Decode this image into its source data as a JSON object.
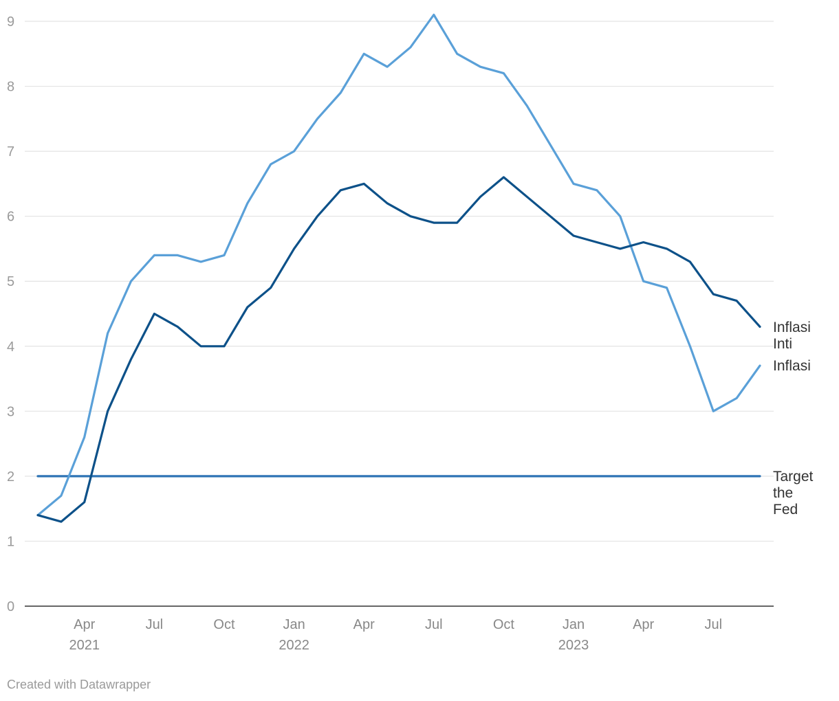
{
  "chart_data": {
    "type": "line",
    "x": [
      "2021-02",
      "2021-03",
      "2021-04",
      "2021-05",
      "2021-06",
      "2021-07",
      "2021-08",
      "2021-09",
      "2021-10",
      "2021-11",
      "2021-12",
      "2022-01",
      "2022-02",
      "2022-03",
      "2022-04",
      "2022-05",
      "2022-06",
      "2022-07",
      "2022-08",
      "2022-09",
      "2022-10",
      "2022-11",
      "2022-12",
      "2023-01",
      "2023-02",
      "2023-03",
      "2023-04",
      "2023-05",
      "2023-06",
      "2023-07",
      "2023-08",
      "2023-09"
    ],
    "series": [
      {
        "name": "Inflasi",
        "color": "#5aa0d8",
        "values": [
          1.4,
          1.7,
          2.6,
          4.2,
          5.0,
          5.4,
          5.4,
          5.3,
          5.4,
          6.2,
          6.8,
          7.0,
          7.5,
          7.9,
          8.5,
          8.3,
          8.6,
          9.1,
          8.5,
          8.3,
          8.2,
          7.7,
          7.1,
          6.5,
          6.4,
          6.0,
          5.0,
          4.9,
          4.0,
          3.0,
          3.2,
          3.7
        ]
      },
      {
        "name": "Inflasi Inti",
        "color": "#0d5189",
        "values": [
          1.4,
          1.3,
          1.6,
          3.0,
          3.8,
          4.5,
          4.3,
          4.0,
          4.0,
          4.6,
          4.9,
          5.5,
          6.0,
          6.4,
          6.5,
          6.2,
          6.0,
          5.9,
          5.9,
          6.3,
          6.6,
          6.3,
          6.0,
          5.7,
          5.6,
          5.5,
          5.6,
          5.5,
          5.3,
          4.8,
          4.7,
          4.3
        ]
      },
      {
        "name": "Target the Fed",
        "color": "#2e74b5",
        "values": [
          2,
          2,
          2,
          2,
          2,
          2,
          2,
          2,
          2,
          2,
          2,
          2,
          2,
          2,
          2,
          2,
          2,
          2,
          2,
          2,
          2,
          2,
          2,
          2,
          2,
          2,
          2,
          2,
          2,
          2,
          2,
          2
        ]
      }
    ],
    "ylim": [
      0,
      9
    ],
    "yticks": [
      0,
      1,
      2,
      3,
      4,
      5,
      6,
      7,
      8,
      9
    ],
    "xticks": [
      {
        "at": "2021-04",
        "label": "Apr",
        "year": "2021"
      },
      {
        "at": "2021-07",
        "label": "Jul",
        "year": ""
      },
      {
        "at": "2021-10",
        "label": "Oct",
        "year": ""
      },
      {
        "at": "2022-01",
        "label": "Jan",
        "year": "2022"
      },
      {
        "at": "2022-04",
        "label": "Apr",
        "year": ""
      },
      {
        "at": "2022-07",
        "label": "Jul",
        "year": ""
      },
      {
        "at": "2022-10",
        "label": "Oct",
        "year": ""
      },
      {
        "at": "2023-01",
        "label": "Jan",
        "year": "2023"
      },
      {
        "at": "2023-04",
        "label": "Apr",
        "year": ""
      },
      {
        "at": "2023-07",
        "label": "Jul",
        "year": ""
      }
    ],
    "labels": {
      "inflasi_inti": [
        "Inflasi",
        "Inti"
      ],
      "inflasi": [
        "Inflasi"
      ],
      "target": [
        "Target",
        "the",
        "Fed"
      ]
    },
    "grid": true,
    "credit": "Created with Datawrapper"
  }
}
